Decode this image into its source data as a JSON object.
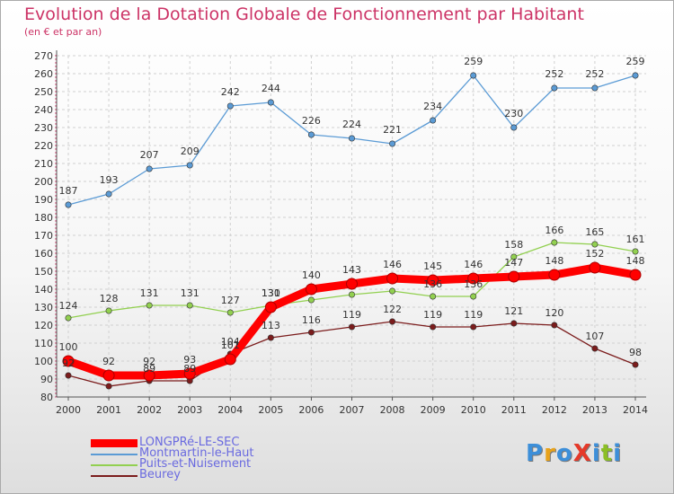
{
  "title": "Evolution de la Dotation Globale de Fonctionnement par Habitant",
  "subtitle": "(en € et par an)",
  "logo": {
    "text": "ProXiti",
    "letters": [
      "P",
      "r",
      "o",
      "X",
      "i",
      "t",
      "i"
    ],
    "colors": [
      "#3d8fd9",
      "#e8a21a",
      "#3d8fd9",
      "#e53a2a",
      "#3d8fd9",
      "#8cbf26",
      "#3d8fd9"
    ]
  },
  "chart_data": {
    "type": "line",
    "title": "Evolution de la Dotation Globale de Fonctionnement par Habitant",
    "subtitle": "(en € et par an)",
    "xlabel": "",
    "ylabel": "",
    "ylim": [
      80,
      270
    ],
    "y_ticks": [
      80,
      90,
      100,
      110,
      120,
      130,
      140,
      150,
      160,
      170,
      180,
      190,
      200,
      210,
      220,
      230,
      240,
      250,
      260,
      270
    ],
    "x": [
      "2000",
      "2001",
      "2002",
      "2003",
      "2004",
      "2005",
      "2006",
      "2007",
      "2008",
      "2009",
      "2010",
      "2011",
      "2012",
      "2013",
      "2014"
    ],
    "grid": true,
    "legend_position": "bottom-left",
    "series": [
      {
        "name": "LONGPRé-LE-SEC",
        "color": "#ff0000",
        "values": [
          100,
          92,
          92,
          93,
          101,
          130,
          140,
          143,
          146,
          145,
          146,
          147,
          148,
          152,
          148
        ]
      },
      {
        "name": "Montmartin-le-Haut",
        "color": "#5b9bd5",
        "values": [
          187,
          193,
          207,
          209,
          242,
          244,
          226,
          224,
          221,
          234,
          259,
          230,
          252,
          252,
          259
        ]
      },
      {
        "name": "Puits-et-Nuisement",
        "color": "#92d050",
        "values": [
          124,
          128,
          131,
          131,
          127,
          131,
          134,
          137,
          139,
          136,
          136,
          158,
          166,
          165,
          161
        ]
      },
      {
        "name": "Beurey",
        "color": "#7b1c1c",
        "values": [
          92,
          86,
          89,
          89,
          104,
          113,
          116,
          119,
          122,
          119,
          119,
          121,
          120,
          107,
          98
        ]
      }
    ],
    "data_labels": [
      {
        "series": "Montmartin-le-Haut",
        "labels": [
          "187",
          "193",
          "207",
          "209",
          "242",
          "244",
          "226",
          "224",
          "221",
          "234",
          "259",
          "230",
          "252",
          "252",
          "259"
        ]
      },
      {
        "series": "Puits-et-Nuisement",
        "labels": [
          "124",
          "128",
          "131",
          "131",
          "127",
          "131",
          "",
          "",
          "",
          "136",
          "136",
          "158",
          "166",
          "165",
          "161"
        ]
      },
      {
        "series": "LONGPRé-LE-SEC",
        "labels": [
          "100",
          "92",
          "92",
          "93",
          "101",
          "130",
          "140",
          "143",
          "146",
          "145",
          "146",
          "147",
          "148",
          "152",
          "148"
        ]
      },
      {
        "series": "Beurey",
        "labels": [
          "92",
          "",
          "89",
          "89",
          "104",
          "113",
          "116",
          "119",
          "122",
          "119",
          "119",
          "121",
          "120",
          "107",
          "98"
        ]
      }
    ]
  }
}
